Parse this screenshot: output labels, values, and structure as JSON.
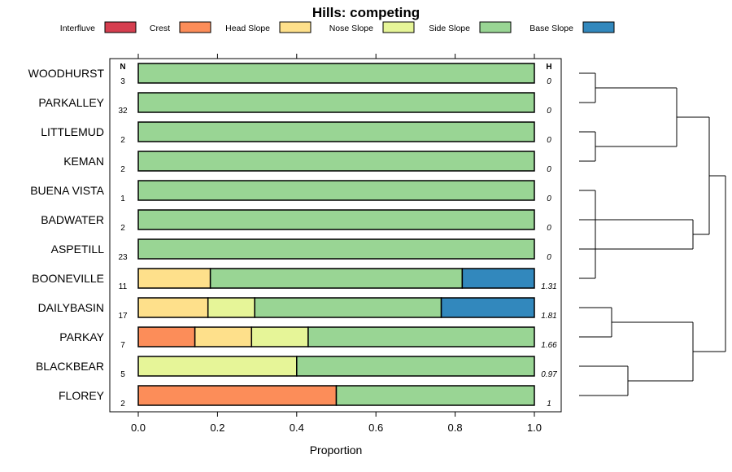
{
  "chart_data": {
    "type": "bar",
    "orientation": "horizontal",
    "stacked": true,
    "title": "Hills: competing",
    "xlabel": "Proportion",
    "ylabel": "",
    "xlim": [
      0,
      1
    ],
    "xticks": [
      "0.0",
      "0.2",
      "0.4",
      "0.6",
      "0.8",
      "1.0"
    ],
    "n_header": "N",
    "h_header": "H",
    "legend": [
      {
        "name": "Interfluve",
        "color": "#d53e4f"
      },
      {
        "name": "Crest",
        "color": "#fc8d59"
      },
      {
        "name": "Head Slope",
        "color": "#fee08b"
      },
      {
        "name": "Nose Slope",
        "color": "#e6f598"
      },
      {
        "name": "Side Slope",
        "color": "#99d594"
      },
      {
        "name": "Base Slope",
        "color": "#3288bd"
      }
    ],
    "categories": [
      "WOODHURST",
      "PARKALLEY",
      "LITTLEMUD",
      "KEMAN",
      "BUENA VISTA",
      "BADWATER",
      "ASPETILL",
      "BOONEVILLE",
      "DAILYBASIN",
      "PARKAY",
      "BLACKBEAR",
      "FLOREY"
    ],
    "n": [
      "3",
      "32",
      "2",
      "2",
      "1",
      "2",
      "23",
      "11",
      "17",
      "7",
      "5",
      "2"
    ],
    "h": [
      "0",
      "0",
      "0",
      "0",
      "0",
      "0",
      "0",
      "1.31",
      "1.81",
      "1.66",
      "0.97",
      "1"
    ],
    "series": [
      {
        "name": "Interfluve",
        "values": [
          0,
          0,
          0,
          0,
          0,
          0,
          0,
          0,
          0,
          0,
          0,
          0
        ]
      },
      {
        "name": "Crest",
        "values": [
          0,
          0,
          0,
          0,
          0,
          0,
          0,
          0,
          0,
          0.143,
          0,
          0.5
        ]
      },
      {
        "name": "Head Slope",
        "values": [
          0,
          0,
          0,
          0,
          0,
          0,
          0,
          0.182,
          0.176,
          0.143,
          0,
          0
        ]
      },
      {
        "name": "Nose Slope",
        "values": [
          0,
          0,
          0,
          0,
          0,
          0,
          0,
          0,
          0.118,
          0.143,
          0.4,
          0
        ]
      },
      {
        "name": "Side Slope",
        "values": [
          1,
          1,
          1,
          1,
          1,
          1,
          1,
          0.636,
          0.471,
          0.571,
          0.6,
          0.5
        ]
      },
      {
        "name": "Base Slope",
        "values": [
          0,
          0,
          0,
          0,
          0,
          0,
          0,
          0.182,
          0.235,
          0,
          0,
          0
        ]
      }
    ],
    "dendrogram": {
      "nodes": [
        {
          "left": 0,
          "right": 1,
          "height": 0.05
        },
        {
          "left": 2,
          "right": 4,
          "height": 0.05
        },
        {
          "left": 3,
          "right": 6,
          "height": 0.05
        },
        {
          "left": 5,
          "right": 7,
          "height": 0.05
        },
        {
          "left": 8,
          "right": 9,
          "height": 0.1
        },
        {
          "left": 10,
          "right": 11,
          "height": 0.15
        },
        {
          "left": 12,
          "right": 13,
          "height": 0.3
        },
        {
          "left": 14,
          "right": 15,
          "height": 0.35
        },
        {
          "left": 16,
          "right": 17,
          "height": 0.35
        },
        {
          "left": 18,
          "right": 19,
          "height": 0.4
        },
        {
          "left": 20,
          "right": 21,
          "height": 0.45
        }
      ],
      "leaves": [
        "WOODHURST",
        "PARKALLEY",
        "LITTLEMUD",
        "BUENA VISTA",
        "KEMAN",
        "BADWATER",
        "ASPETILL",
        "BOONEVILLE",
        "DAILYBASIN",
        "PARKAY",
        "BLACKBEAR",
        "FLOREY"
      ]
    }
  }
}
